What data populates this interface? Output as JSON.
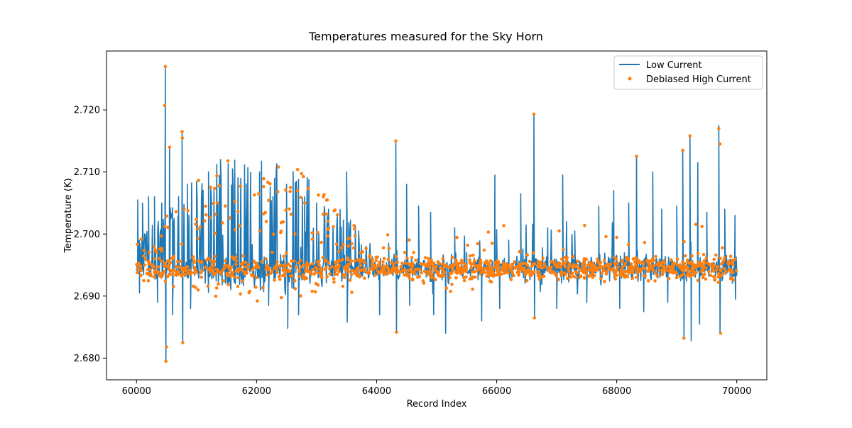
{
  "chart_data": {
    "type": "line",
    "title": "Temperatures measured for the Sky Horn",
    "xlabel": "Record Index",
    "ylabel": "Temperature (K)",
    "xlim": [
      59500,
      70500
    ],
    "ylim": [
      2.6765,
      2.7295
    ],
    "xticks": [
      60000,
      62000,
      64000,
      66000,
      68000,
      70000
    ],
    "xtick_labels": [
      "60000",
      "62000",
      "64000",
      "66000",
      "68000",
      "70000"
    ],
    "yticks": [
      2.68,
      2.69,
      2.7,
      2.71,
      2.72
    ],
    "ytick_labels": [
      "2.680",
      "2.690",
      "2.700",
      "2.710",
      "2.720"
    ],
    "grid": false,
    "legend": {
      "location": "top-right",
      "entries": [
        "Low Current",
        "Debiased High Current"
      ]
    },
    "series": [
      {
        "name": "Low Current",
        "style": "line",
        "color": "#1f77b4",
        "x_start": 60000,
        "x_end": 70000,
        "baseline": 2.6945,
        "noise_band": [
          2.6915,
          2.6975
        ],
        "spikes": [
          {
            "x": 60020,
            "y": 2.7055
          },
          {
            "x": 60050,
            "y": 2.6905
          },
          {
            "x": 60100,
            "y": 2.705
          },
          {
            "x": 60200,
            "y": 2.706
          },
          {
            "x": 60300,
            "y": 2.706
          },
          {
            "x": 60350,
            "y": 2.689
          },
          {
            "x": 60420,
            "y": 2.705
          },
          {
            "x": 60480,
            "y": 2.727
          },
          {
            "x": 60490,
            "y": 2.6795
          },
          {
            "x": 60550,
            "y": 2.714
          },
          {
            "x": 60600,
            "y": 2.687
          },
          {
            "x": 60700,
            "y": 2.706
          },
          {
            "x": 60760,
            "y": 2.7165
          },
          {
            "x": 60770,
            "y": 2.6825
          },
          {
            "x": 60850,
            "y": 2.708
          },
          {
            "x": 60900,
            "y": 2.688
          },
          {
            "x": 61000,
            "y": 2.7085
          },
          {
            "x": 61200,
            "y": 2.71
          },
          {
            "x": 61400,
            "y": 2.712
          },
          {
            "x": 61600,
            "y": 2.7105
          },
          {
            "x": 61800,
            "y": 2.71
          },
          {
            "x": 62050,
            "y": 2.71
          },
          {
            "x": 62200,
            "y": 2.6885
          },
          {
            "x": 62300,
            "y": 2.709
          },
          {
            "x": 62500,
            "y": 2.708
          },
          {
            "x": 62520,
            "y": 2.6848
          },
          {
            "x": 62700,
            "y": 2.687
          },
          {
            "x": 62800,
            "y": 2.706
          },
          {
            "x": 63000,
            "y": 2.705
          },
          {
            "x": 63200,
            "y": 2.704
          },
          {
            "x": 63500,
            "y": 2.71
          },
          {
            "x": 63510,
            "y": 2.6858
          },
          {
            "x": 63700,
            "y": 2.7005
          },
          {
            "x": 64050,
            "y": 2.687
          },
          {
            "x": 64200,
            "y": 2.6985
          },
          {
            "x": 64320,
            "y": 2.715
          },
          {
            "x": 64330,
            "y": 2.6842
          },
          {
            "x": 64500,
            "y": 2.708
          },
          {
            "x": 64550,
            "y": 2.6885
          },
          {
            "x": 64700,
            "y": 2.7045
          },
          {
            "x": 64900,
            "y": 2.7035
          },
          {
            "x": 64950,
            "y": 2.687
          },
          {
            "x": 65150,
            "y": 2.684
          },
          {
            "x": 65300,
            "y": 2.701
          },
          {
            "x": 65500,
            "y": 2.697
          },
          {
            "x": 65750,
            "y": 2.686
          },
          {
            "x": 65970,
            "y": 2.7095
          },
          {
            "x": 66050,
            "y": 2.688
          },
          {
            "x": 66200,
            "y": 2.699
          },
          {
            "x": 66400,
            "y": 2.7065
          },
          {
            "x": 66620,
            "y": 2.7195
          },
          {
            "x": 66630,
            "y": 2.6865
          },
          {
            "x": 66850,
            "y": 2.701
          },
          {
            "x": 67000,
            "y": 2.688
          },
          {
            "x": 67100,
            "y": 2.7095
          },
          {
            "x": 67300,
            "y": 2.7005
          },
          {
            "x": 67500,
            "y": 2.689
          },
          {
            "x": 67700,
            "y": 2.7045
          },
          {
            "x": 67950,
            "y": 2.707
          },
          {
            "x": 68050,
            "y": 2.688
          },
          {
            "x": 68200,
            "y": 2.705
          },
          {
            "x": 68330,
            "y": 2.7125
          },
          {
            "x": 68450,
            "y": 2.6875
          },
          {
            "x": 68600,
            "y": 2.71
          },
          {
            "x": 68750,
            "y": 2.704
          },
          {
            "x": 68850,
            "y": 2.689
          },
          {
            "x": 69000,
            "y": 2.7045
          },
          {
            "x": 69100,
            "y": 2.7135
          },
          {
            "x": 69120,
            "y": 2.6832
          },
          {
            "x": 69220,
            "y": 2.716
          },
          {
            "x": 69240,
            "y": 2.6828
          },
          {
            "x": 69350,
            "y": 2.7115
          },
          {
            "x": 69380,
            "y": 2.6855
          },
          {
            "x": 69500,
            "y": 2.7035
          },
          {
            "x": 69700,
            "y": 2.7175
          },
          {
            "x": 69720,
            "y": 2.684
          },
          {
            "x": 69800,
            "y": 2.704
          },
          {
            "x": 69900,
            "y": 2.695
          },
          {
            "x": 69970,
            "y": 2.703
          },
          {
            "x": 69980,
            "y": 2.6895
          }
        ]
      },
      {
        "name": "Debiased High Current",
        "style": "scatter",
        "color": "#ff7f0e",
        "x_start": 60000,
        "x_end": 70000,
        "baseline": 2.6945,
        "noise_band": [
          2.6915,
          2.6975
        ],
        "highlights": [
          {
            "x": 60480,
            "y": 2.727
          },
          {
            "x": 60470,
            "y": 2.7207
          },
          {
            "x": 60490,
            "y": 2.6795
          },
          {
            "x": 60500,
            "y": 2.6818
          },
          {
            "x": 60550,
            "y": 2.714
          },
          {
            "x": 60760,
            "y": 2.7165
          },
          {
            "x": 60765,
            "y": 2.7155
          },
          {
            "x": 60770,
            "y": 2.6825
          },
          {
            "x": 64320,
            "y": 2.715
          },
          {
            "x": 64330,
            "y": 2.6842
          },
          {
            "x": 66620,
            "y": 2.7193
          },
          {
            "x": 66630,
            "y": 2.6865
          },
          {
            "x": 68330,
            "y": 2.7125
          },
          {
            "x": 69100,
            "y": 2.7135
          },
          {
            "x": 69120,
            "y": 2.6832
          },
          {
            "x": 69220,
            "y": 2.7158
          },
          {
            "x": 69700,
            "y": 2.717
          },
          {
            "x": 69720,
            "y": 2.7145
          },
          {
            "x": 69730,
            "y": 2.684
          }
        ]
      }
    ]
  }
}
